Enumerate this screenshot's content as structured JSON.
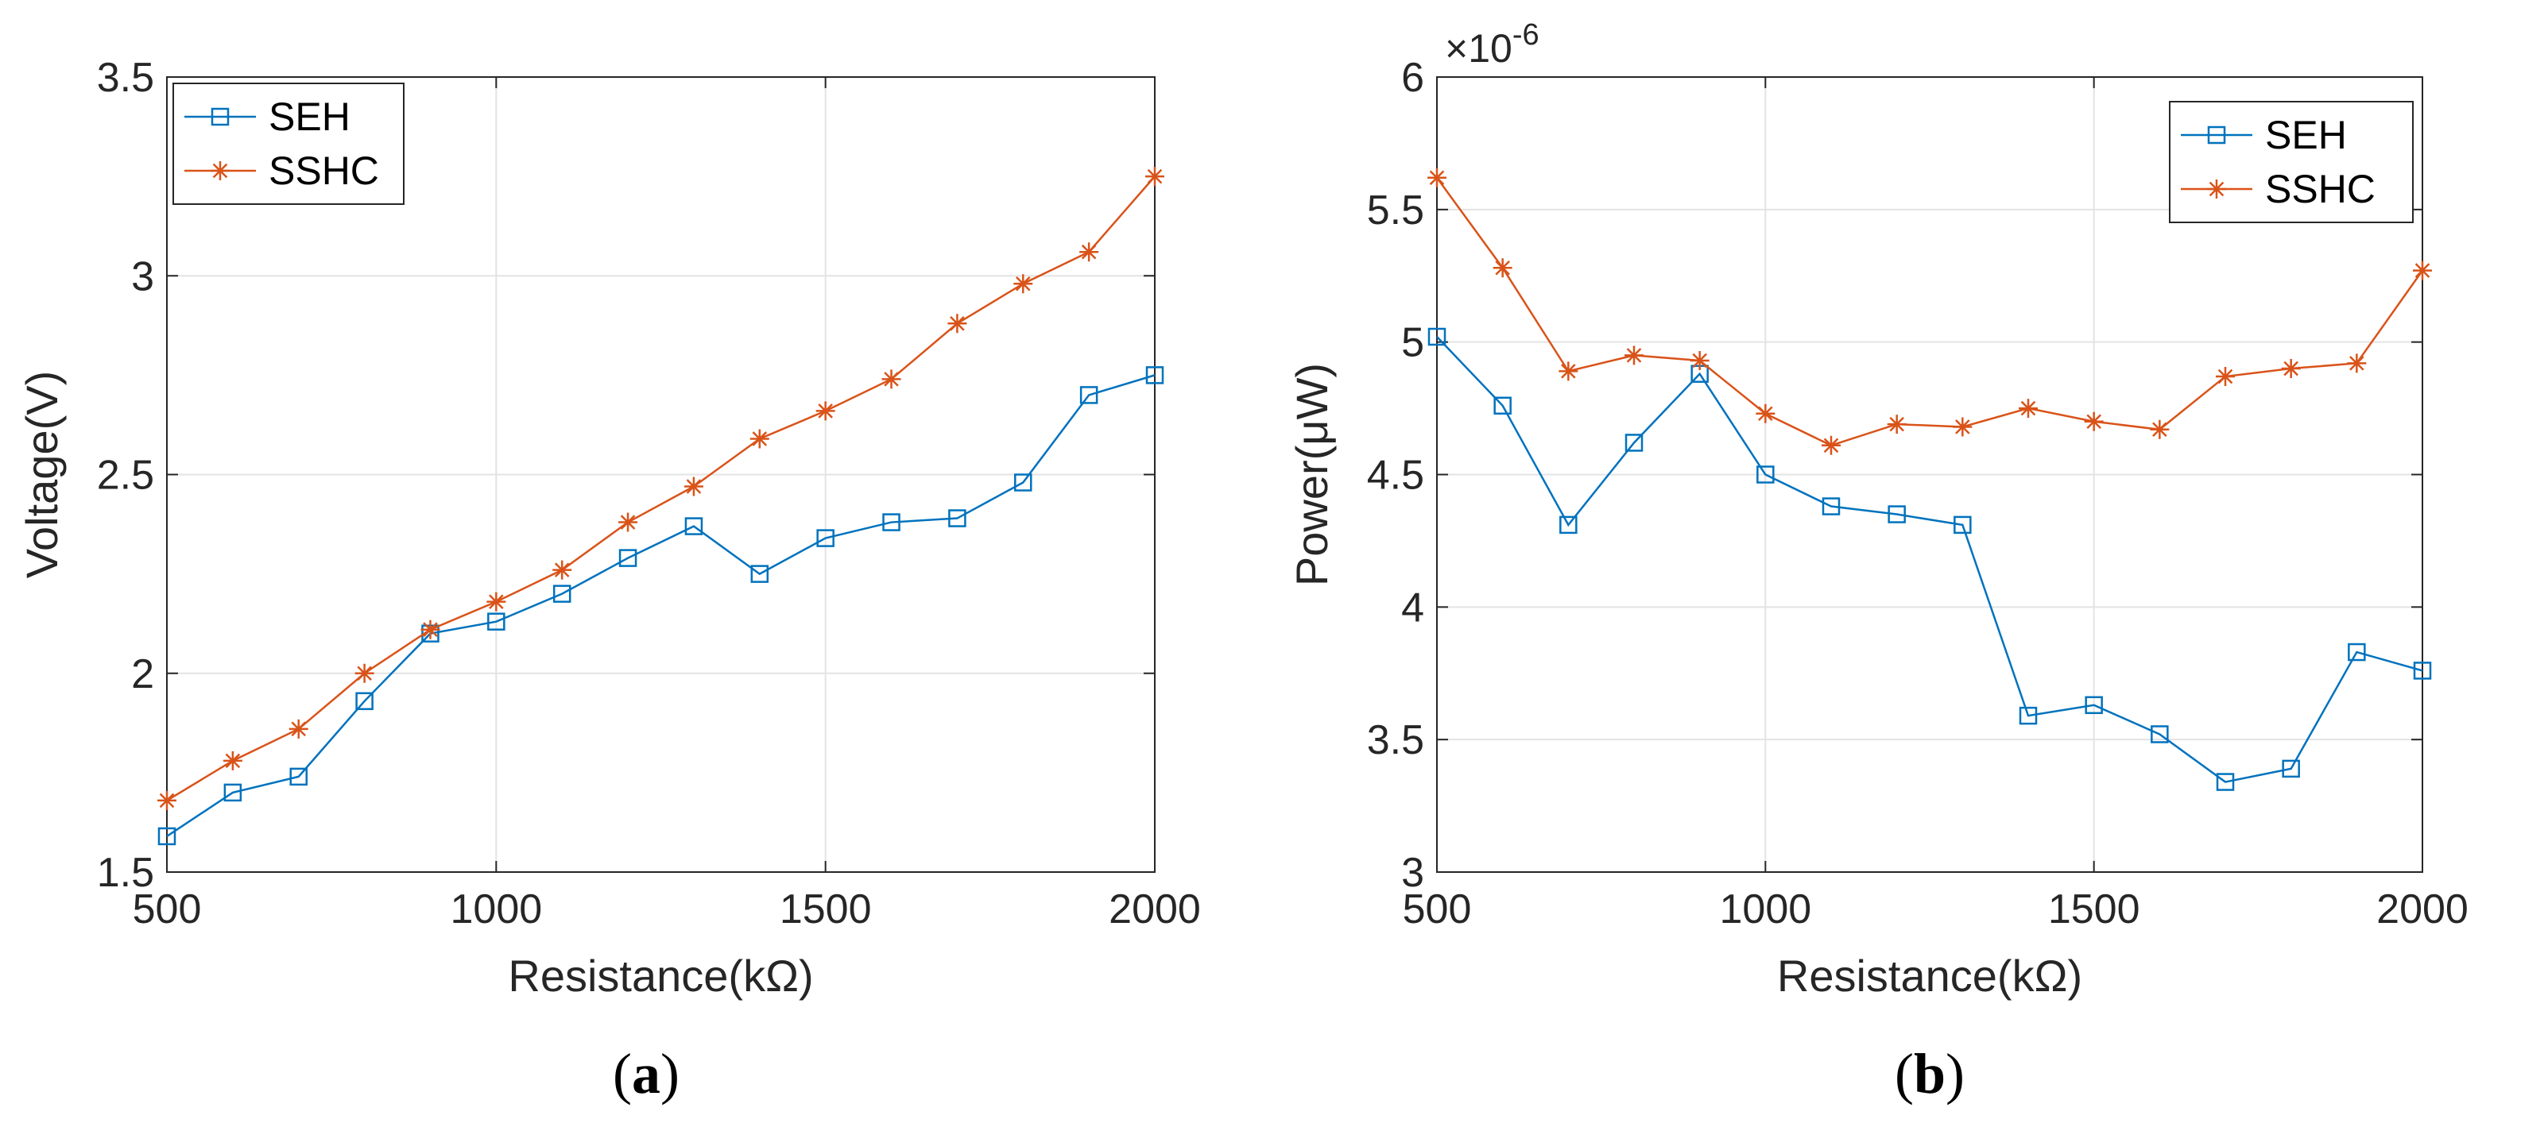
{
  "chart_data": [
    {
      "type": "line",
      "panel": "(a)",
      "caption_paren_open": "(",
      "caption_letter": "a",
      "caption_paren_close": ")",
      "xlabel": "Resistance(kΩ)",
      "ylabel": "Voltage(V)",
      "xlim": [
        500,
        2000
      ],
      "ylim": [
        1.5,
        3.5
      ],
      "xticks": [
        500,
        1000,
        1500,
        2000
      ],
      "xtick_labels": [
        "500",
        "1000",
        "1500",
        "2000"
      ],
      "yticks": [
        1.5,
        2,
        2.5,
        3,
        3.5
      ],
      "ytick_labels": [
        "1.5",
        "2",
        "2.5",
        "3",
        "3.5"
      ],
      "grid": true,
      "legend_position": "top-left",
      "x": [
        500,
        600,
        700,
        800,
        900,
        1000,
        1100,
        1200,
        1300,
        1400,
        1500,
        1600,
        1700,
        1800,
        1900,
        2000
      ],
      "series": [
        {
          "name": "SEH",
          "marker": "square",
          "color": "#0072BD",
          "values": [
            1.59,
            1.7,
            1.74,
            1.93,
            2.1,
            2.13,
            2.2,
            2.29,
            2.37,
            2.25,
            2.34,
            2.38,
            2.39,
            2.48,
            2.7,
            2.75
          ]
        },
        {
          "name": "SSHC",
          "marker": "asterisk",
          "color": "#D95319",
          "values": [
            1.68,
            1.78,
            1.86,
            2.0,
            2.11,
            2.18,
            2.26,
            2.38,
            2.47,
            2.59,
            2.66,
            2.74,
            2.88,
            2.98,
            3.06,
            3.25
          ]
        }
      ]
    },
    {
      "type": "line",
      "panel": "(b)",
      "caption_paren_open": "(",
      "caption_letter": "b",
      "caption_paren_close": ")",
      "xlabel": "Resistance(kΩ)",
      "ylabel": "Power(μW)",
      "exponent_label": "×10",
      "exponent_value": "-6",
      "xlim": [
        500,
        2000
      ],
      "ylim": [
        3,
        6
      ],
      "xticks": [
        500,
        1000,
        1500,
        2000
      ],
      "xtick_labels": [
        "500",
        "1000",
        "1500",
        "2000"
      ],
      "yticks": [
        3,
        3.5,
        4,
        4.5,
        5,
        5.5,
        6
      ],
      "ytick_labels": [
        "3",
        "3.5",
        "4",
        "4.5",
        "5",
        "5.5",
        "6"
      ],
      "grid": true,
      "legend_position": "top-right",
      "x": [
        500,
        600,
        700,
        800,
        900,
        1000,
        1100,
        1200,
        1300,
        1400,
        1500,
        1600,
        1700,
        1800,
        1900,
        2000
      ],
      "series": [
        {
          "name": "SEH",
          "marker": "square",
          "color": "#0072BD",
          "values": [
            5.02,
            4.76,
            4.31,
            4.62,
            4.88,
            4.5,
            4.38,
            4.35,
            4.31,
            3.59,
            3.63,
            3.52,
            3.34,
            3.39,
            3.83,
            3.76
          ]
        },
        {
          "name": "SSHC",
          "marker": "asterisk",
          "color": "#D95319",
          "values": [
            5.62,
            5.28,
            4.89,
            4.95,
            4.93,
            4.73,
            4.61,
            4.69,
            4.68,
            4.75,
            4.7,
            4.67,
            4.87,
            4.9,
            4.92,
            5.27
          ]
        }
      ]
    }
  ]
}
